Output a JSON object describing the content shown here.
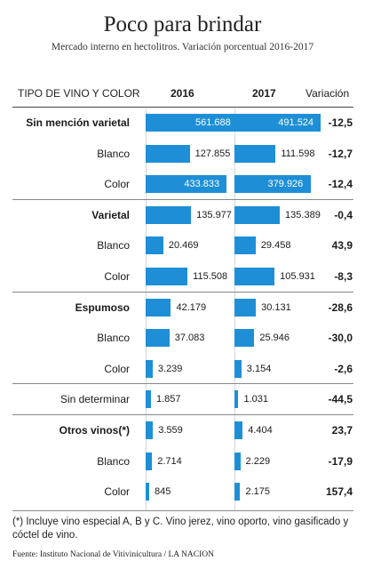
{
  "title": "Poco para brindar",
  "subtitle": "Mercado interno en hectolitros. Variación porcentual 2016-2017",
  "header": {
    "type_label": "TIPO DE VINO Y COLOR",
    "col_2016": "2016",
    "col_2017": "2017",
    "col_variation": "Variación"
  },
  "colors": {
    "bar": "#1e8fd6"
  },
  "chart_data": {
    "type": "bar",
    "orientation": "horizontal",
    "title": "Poco para brindar",
    "subtitle": "Mercado interno en hectolitros. Variación porcentual 2016-2017",
    "categories": [
      "Sin mención varietal",
      "Blanco",
      "Color",
      "Varietal",
      "Blanco",
      "Color",
      "Espumoso",
      "Blanco",
      "Color",
      "Sin determinar",
      "Otros vinos(*)",
      "Blanco",
      "Color"
    ],
    "category_groups": [
      0,
      0,
      0,
      1,
      1,
      1,
      2,
      2,
      2,
      3,
      4,
      4,
      4
    ],
    "category_is_total": [
      true,
      false,
      false,
      true,
      false,
      false,
      true,
      false,
      false,
      false,
      true,
      false,
      false
    ],
    "series": [
      {
        "name": "2016",
        "values": [
          561688,
          127855,
          433833,
          135977,
          20469,
          115508,
          42179,
          37083,
          3239,
          1857,
          3559,
          2714,
          845
        ],
        "labels": [
          "561.688",
          "127.855",
          "433.833",
          "135.977",
          "20.469",
          "115.508",
          "42.179",
          "37.083",
          "3.239",
          "1.857",
          "3.559",
          "2.714",
          "845"
        ]
      },
      {
        "name": "2017",
        "values": [
          491524,
          111598,
          379926,
          135389,
          29458,
          105931,
          30131,
          25946,
          3154,
          1031,
          4404,
          2229,
          2175
        ],
        "labels": [
          "491.524",
          "111.598",
          "379.926",
          "135.389",
          "29.458",
          "105.931",
          "30.131",
          "25.946",
          "3.154",
          "1.031",
          "4.404",
          "2.229",
          "2.175"
        ]
      }
    ],
    "variation": [
      "-12,5",
      "-12,7",
      "-12,4",
      "-0,4",
      "43,9",
      "-8,3",
      "-28,6",
      "-30,0",
      "-2,6",
      "-44,5",
      "23,7",
      "-17,9",
      "157,4"
    ],
    "scale": "sqrt",
    "grid": false,
    "legend": "none"
  },
  "footnote": "(*) Incluye vino especial A, B y C. Vino jerez, vino oporto, vino gasificado y cóctel de vino.",
  "source": "Fuente: Instituto Nacional de Vitivinicultura / LA NACION"
}
